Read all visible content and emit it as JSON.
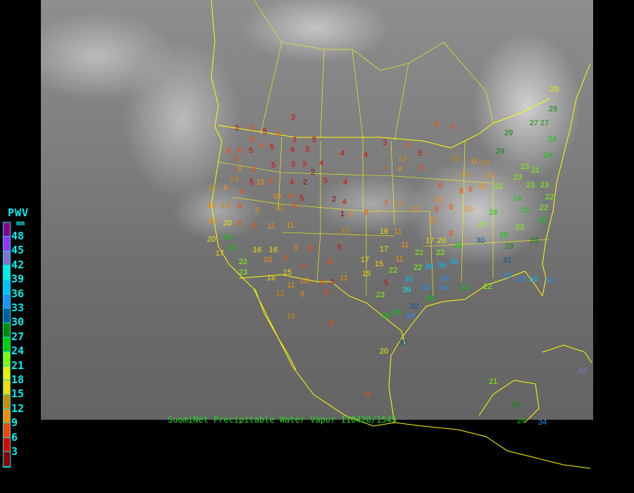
{
  "caption": "SuomiNet Precipitable Water Vapor 110420/1545",
  "legend": {
    "title": "PWV",
    "unit": "mm",
    "labels": [
      "48",
      "45",
      "42",
      "39",
      "36",
      "33",
      "30",
      "27",
      "24",
      "21",
      "18",
      "15",
      "12",
      "9",
      "6",
      "3"
    ],
    "colors_top_to_bottom": [
      "#8b008b",
      "#9b30ff",
      "#8470d0",
      "#00eeee",
      "#00bfff",
      "#1e90ff",
      "#005a9c",
      "#008b00",
      "#00cd00",
      "#7fff00",
      "#eeee00",
      "#ffd700",
      "#cd8c00",
      "#ff8c00",
      "#ff4500",
      "#dd0000",
      "#8b0000"
    ]
  },
  "border_color": "#ffff00",
  "stations": {
    "values": [
      3,
      3,
      8,
      8,
      5,
      6,
      3,
      5,
      5,
      6,
      5,
      4,
      3,
      4,
      4,
      3,
      8,
      6,
      8,
      8,
      8,
      8,
      9,
      8,
      5,
      3,
      3,
      4,
      2,
      5,
      6,
      4,
      2,
      5,
      4,
      7,
      9,
      8,
      13,
      5,
      13,
      13,
      9,
      8,
      11,
      10,
      8,
      5,
      2,
      4,
      1,
      10,
      13,
      8,
      9,
      12,
      8,
      9,
      8,
      7,
      12,
      11,
      11,
      8,
      8,
      8,
      10,
      10,
      20,
      8,
      8,
      11,
      11,
      12,
      16,
      11,
      11,
      17,
      20,
      8,
      20,
      24,
      17,
      24,
      16,
      16,
      9,
      8,
      5,
      17,
      11,
      22,
      22,
      26,
      30,
      26,
      29,
      31,
      22,
      10,
      6,
      8,
      6,
      17,
      15,
      22,
      22,
      36,
      36,
      36,
      23,
      16,
      15,
      10,
      6,
      3,
      11,
      15,
      5,
      36,
      34,
      39,
      34,
      34,
      24,
      22,
      35,
      33,
      36,
      33,
      12,
      11,
      9,
      6,
      23,
      32,
      26,
      26,
      26,
      34,
      13,
      6,
      30,
      20,
      8,
      21,
      28,
      34,
      42,
      24,
      20,
      29,
      27,
      27,
      29,
      24,
      24,
      29,
      23,
      21,
      23,
      23,
      23,
      22,
      22,
      24,
      25,
      22,
      26,
      25,
      22,
      23,
      29,
      11,
      14,
      14,
      10,
      10,
      12,
      8,
      8,
      10
    ]
  }
}
